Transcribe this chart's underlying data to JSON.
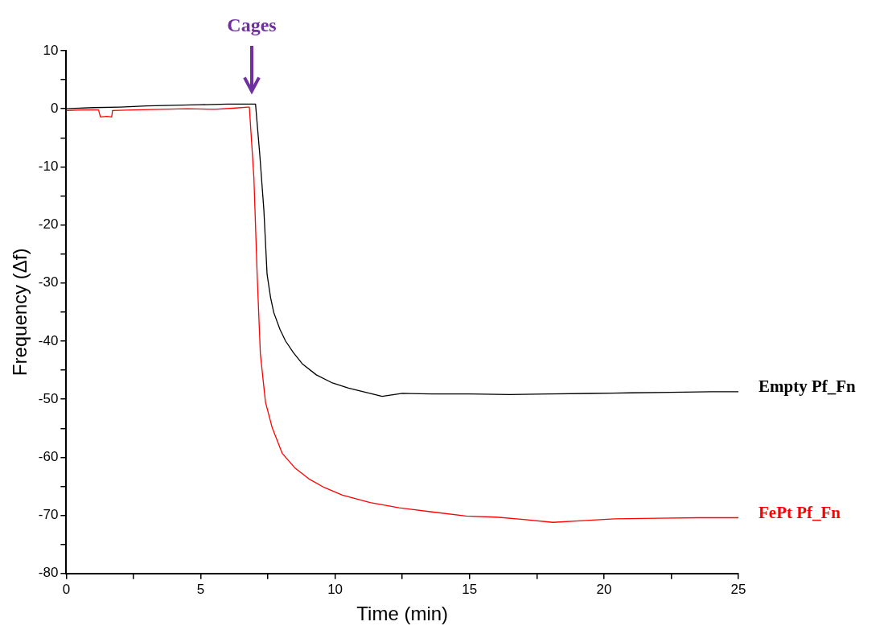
{
  "chart_data": {
    "type": "line",
    "xlabel": "Time (min)",
    "ylabel": "Frequency (Δf)",
    "xlim": [
      0,
      25
    ],
    "ylim": [
      -80,
      10
    ],
    "xticks": [
      0,
      {
        "value": 2.5,
        "label": null
      },
      5,
      {
        "value": 7.5,
        "label": null
      },
      10,
      {
        "value": 12.5,
        "label": null
      },
      15,
      {
        "value": 17.5,
        "label": null
      },
      20,
      {
        "value": 22.5,
        "label": null
      },
      25
    ],
    "yticks": [
      -80,
      {
        "value": -75,
        "label": null
      },
      -70,
      {
        "value": -65,
        "label": null
      },
      -60,
      {
        "value": -55,
        "label": null
      },
      -50,
      {
        "value": -45,
        "label": null
      },
      -40,
      {
        "value": -35,
        "label": null
      },
      -30,
      {
        "value": -25,
        "label": null
      },
      -20,
      {
        "value": -15,
        "label": null
      },
      -10,
      {
        "value": -5,
        "label": null
      },
      0,
      {
        "value": 5,
        "label": null
      },
      10
    ],
    "grid": false,
    "legend": false,
    "annotations": [
      "Cages"
    ],
    "series": [
      {
        "name": "Empty Pf_Fn",
        "color": "#000000",
        "x": [
          0,
          1,
          2,
          3,
          4,
          5,
          6,
          6.9,
          7.04,
          7.2,
          7.35,
          7.47,
          7.6,
          7.72,
          7.95,
          8.16,
          8.45,
          8.78,
          9.3,
          9.9,
          10.5,
          11.14,
          11.75,
          12.5,
          13.6,
          15,
          16.5,
          18,
          19.5,
          21,
          22.5,
          24,
          25
        ],
        "values": [
          0,
          0.2,
          0.3,
          0.5,
          0.6,
          0.7,
          0.8,
          0.8,
          0.8,
          -8,
          -17.4,
          -28.5,
          -32.5,
          -35.1,
          -38,
          -40,
          -42,
          -43.9,
          -45.8,
          -47.2,
          -48.1,
          -48.8,
          -49.5,
          -49,
          -49.1,
          -49.1,
          -49.2,
          -49.1,
          -49,
          -48.9,
          -48.8,
          -48.7,
          -48.7
        ]
      },
      {
        "name": "FePt Pf_Fn",
        "color": "#ff0000",
        "x": [
          0,
          0.6,
          1.2,
          1.27,
          1.5,
          1.69,
          1.72,
          2.5,
          3.5,
          4.5,
          5.5,
          6.2,
          6.76,
          6.81,
          6.98,
          7.1,
          7.22,
          7.41,
          7.66,
          8.03,
          8.5,
          9.02,
          9.6,
          10.27,
          11.3,
          12.38,
          13.6,
          14.87,
          16,
          17,
          18.1,
          19.2,
          20.4,
          22,
          23.5,
          25
        ],
        "values": [
          -0.3,
          -0.2,
          -0.2,
          -1.4,
          -1.3,
          -1.4,
          -0.3,
          -0.2,
          -0.1,
          0,
          -0.1,
          0.1,
          0.3,
          0.3,
          -11.9,
          -28.5,
          -42.2,
          -50.5,
          -54.9,
          -59.3,
          -61.8,
          -63.7,
          -65.2,
          -66.5,
          -67.8,
          -68.7,
          -69.4,
          -70.1,
          -70.3,
          -70.7,
          -71.2,
          -70.9,
          -70.6,
          -70.5,
          -70.4,
          -70.4
        ]
      }
    ]
  }
}
